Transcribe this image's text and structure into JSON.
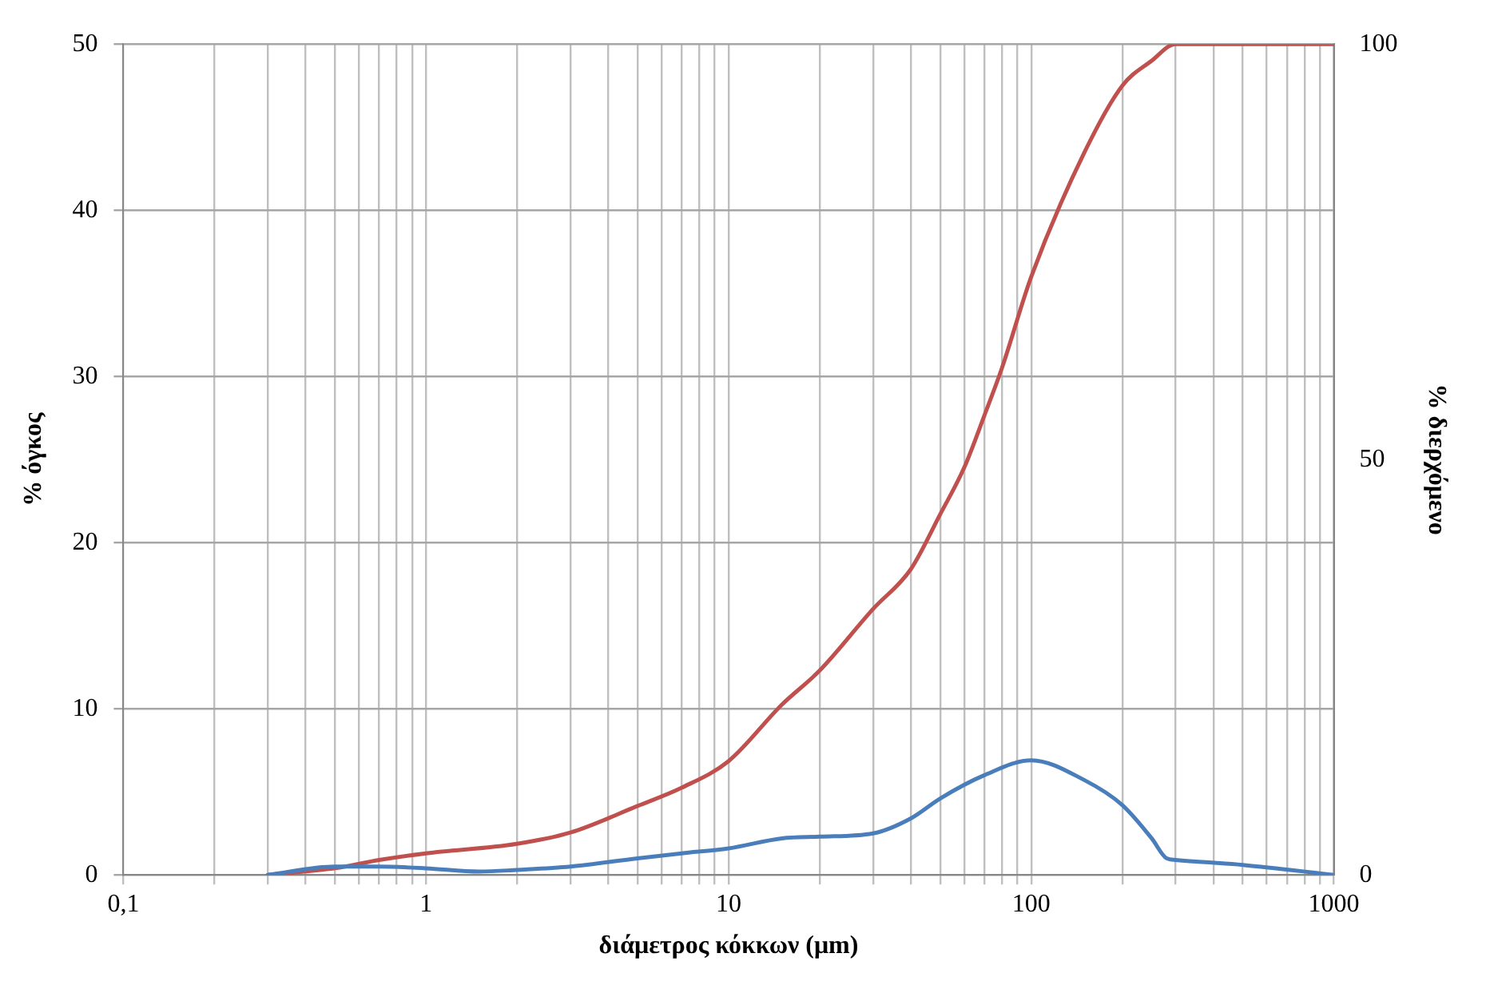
{
  "chart_data": {
    "type": "line",
    "xlabel": "διάμετρος κόκκων (μm)",
    "ylabel": "% όγκος",
    "y2label": "% διερχόμενο",
    "log": "x",
    "grid": true,
    "legend": false,
    "marker": "none",
    "line_style": "solid",
    "xlim": [
      0.1,
      1000
    ],
    "xticks": [
      {
        "value": 0.1,
        "label": "0,1"
      },
      {
        "value": 0.2,
        "label": null
      },
      {
        "value": 0.3,
        "label": null
      },
      {
        "value": 0.4,
        "label": null
      },
      {
        "value": 0.5,
        "label": null
      },
      {
        "value": 0.6,
        "label": null
      },
      {
        "value": 0.7,
        "label": null
      },
      {
        "value": 0.8,
        "label": null
      },
      {
        "value": 0.9,
        "label": null
      },
      {
        "value": 1,
        "label": "1"
      },
      {
        "value": 2,
        "label": null
      },
      {
        "value": 3,
        "label": null
      },
      {
        "value": 4,
        "label": null
      },
      {
        "value": 5,
        "label": null
      },
      {
        "value": 6,
        "label": null
      },
      {
        "value": 7,
        "label": null
      },
      {
        "value": 8,
        "label": null
      },
      {
        "value": 9,
        "label": null
      },
      {
        "value": 10,
        "label": "10"
      },
      {
        "value": 20,
        "label": null
      },
      {
        "value": 30,
        "label": null
      },
      {
        "value": 40,
        "label": null
      },
      {
        "value": 50,
        "label": null
      },
      {
        "value": 60,
        "label": null
      },
      {
        "value": 70,
        "label": null
      },
      {
        "value": 80,
        "label": null
      },
      {
        "value": 90,
        "label": null
      },
      {
        "value": 100,
        "label": "100"
      },
      {
        "value": 200,
        "label": null
      },
      {
        "value": 300,
        "label": null
      },
      {
        "value": 400,
        "label": null
      },
      {
        "value": 500,
        "label": null
      },
      {
        "value": 600,
        "label": null
      },
      {
        "value": 700,
        "label": null
      },
      {
        "value": 800,
        "label": null
      },
      {
        "value": 900,
        "label": null
      },
      {
        "value": 1000,
        "label": "1000"
      }
    ],
    "ylim": [
      0,
      50
    ],
    "yticks": [
      0,
      10,
      20,
      30,
      40,
      50
    ],
    "y2lim": [
      0,
      100
    ],
    "y2ticks": [
      0,
      50,
      100
    ],
    "series": [
      {
        "color": "#4a7ebb",
        "x": [
          0.3,
          0.5,
          0.7,
          1,
          1.5,
          2,
          3,
          5,
          7,
          10,
          15,
          20,
          30,
          40,
          50,
          70,
          100,
          150,
          200,
          250,
          280,
          300,
          500,
          1000
        ],
        "values": [
          0,
          0.5,
          0.5,
          0.4,
          0.2,
          0.3,
          0.5,
          1.0,
          1.3,
          1.6,
          2.2,
          2.3,
          2.5,
          3.4,
          4.6,
          6.0,
          6.9,
          5.7,
          4.2,
          2.2,
          1.0,
          0.9,
          0.6,
          0
        ]
      },
      {
        "color": "#c0504d",
        "axis": "y2",
        "x": [
          0.3,
          0.5,
          0.7,
          1,
          2,
          3,
          5,
          7,
          10,
          15,
          20,
          30,
          40,
          50,
          60,
          70,
          80,
          100,
          150,
          200,
          250,
          300,
          1000
        ],
        "values": [
          0,
          0.8,
          1.8,
          2.6,
          3.75,
          5.1,
          8.3,
          10.5,
          13.7,
          20.5,
          24.6,
          32,
          36.8,
          43.4,
          49,
          55.3,
          61,
          72,
          87,
          95,
          98,
          100,
          100
        ]
      }
    ]
  }
}
